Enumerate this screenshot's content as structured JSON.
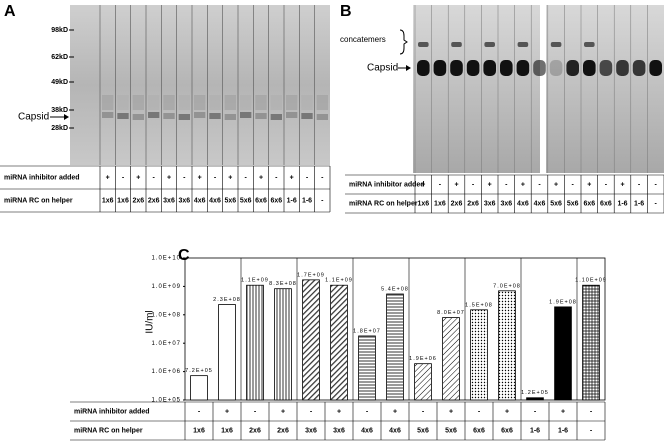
{
  "panel_a": {
    "label": "A",
    "markers": [
      "98kD",
      "62kD",
      "49kD",
      "38kD",
      "28kD"
    ],
    "band_label": "Capsid",
    "row_labels": [
      "miRNA inhibitor added",
      "miRNA RC on helper"
    ],
    "inhibitor": [
      "+",
      "-",
      "+",
      "-",
      "+",
      "-",
      "+",
      "-",
      "+",
      "-",
      "+",
      "-",
      "+",
      "-",
      "-"
    ],
    "rc": [
      "1x6",
      "1x6",
      "2x6",
      "2x6",
      "3x6",
      "3x6",
      "4x6",
      "4x6",
      "5x6",
      "5x6",
      "6x6",
      "6x6",
      "1-6",
      "1-6",
      "-"
    ]
  },
  "panel_b": {
    "label": "B",
    "concatemers": "concatemers",
    "band_label": "Capsid",
    "row_labels": [
      "miRNA inhibitor added",
      "miRNA RC on helper"
    ],
    "inhibitor": [
      "+",
      "-",
      "+",
      "-",
      "+",
      "-",
      "+",
      "-",
      "+",
      "-",
      "+",
      "-",
      "+",
      "-",
      "-"
    ],
    "rc": [
      "1x6",
      "1x6",
      "2x6",
      "2x6",
      "3x6",
      "3x6",
      "4x6",
      "4x6",
      "5x6",
      "5x6",
      "6x6",
      "6x6",
      "1-6",
      "1-6",
      "-"
    ]
  },
  "chart_data": {
    "type": "bar",
    "label": "C",
    "y_label": "IU/ml",
    "log_scale": true,
    "row_labels": [
      "miRNA inhibitor added",
      "miRNA RC on helper"
    ],
    "inhibitor": [
      "-",
      "+",
      "-",
      "+",
      "-",
      "+",
      "-",
      "+",
      "-",
      "+",
      "-",
      "+",
      "-",
      "+",
      "-"
    ],
    "categories": [
      "1x6",
      "1x6",
      "2x6",
      "2x6",
      "3x6",
      "3x6",
      "4x6",
      "4x6",
      "5x6",
      "5x6",
      "6x6",
      "6x6",
      "1-6",
      "1-6",
      "-"
    ],
    "values": [
      720000,
      230000000,
      1100000000,
      830000000,
      1700000000,
      1100000000,
      18000000,
      540000000,
      1900000,
      80000000,
      150000000,
      700000000,
      120000,
      190000000,
      1100000000
    ],
    "value_labels": [
      "7.2E+05",
      "2.3E+08",
      "1.1E+09",
      "8.3E+08",
      "1.7E+09",
      "1.1E+09",
      "1.8E+07",
      "5.4E+08",
      "1.9E+06",
      "8.0E+07",
      "1.5E+08",
      "7.0E+08",
      "1.2E+05",
      "1.9E+08",
      "1.10E+09"
    ],
    "fills": [
      "white",
      "white",
      "vertical",
      "vertical",
      "diagonal",
      "diagonal",
      "horizontal",
      "horizontal",
      "light-diagonal",
      "light-diagonal",
      "dots",
      "dots",
      "black",
      "black",
      "grid"
    ],
    "ylim": [
      100000,
      10000000000
    ],
    "yticks": [
      {
        "value": 100000,
        "label": "1.0E+05"
      },
      {
        "value": 1000000,
        "label": "1.0E+06"
      },
      {
        "value": 10000000,
        "label": "1.0E+07"
      },
      {
        "value": 100000000,
        "label": "1.0E+08"
      },
      {
        "value": 1000000000,
        "label": "1.0E+09"
      },
      {
        "value": 10000000000,
        "label": "1.0E+10"
      }
    ]
  }
}
